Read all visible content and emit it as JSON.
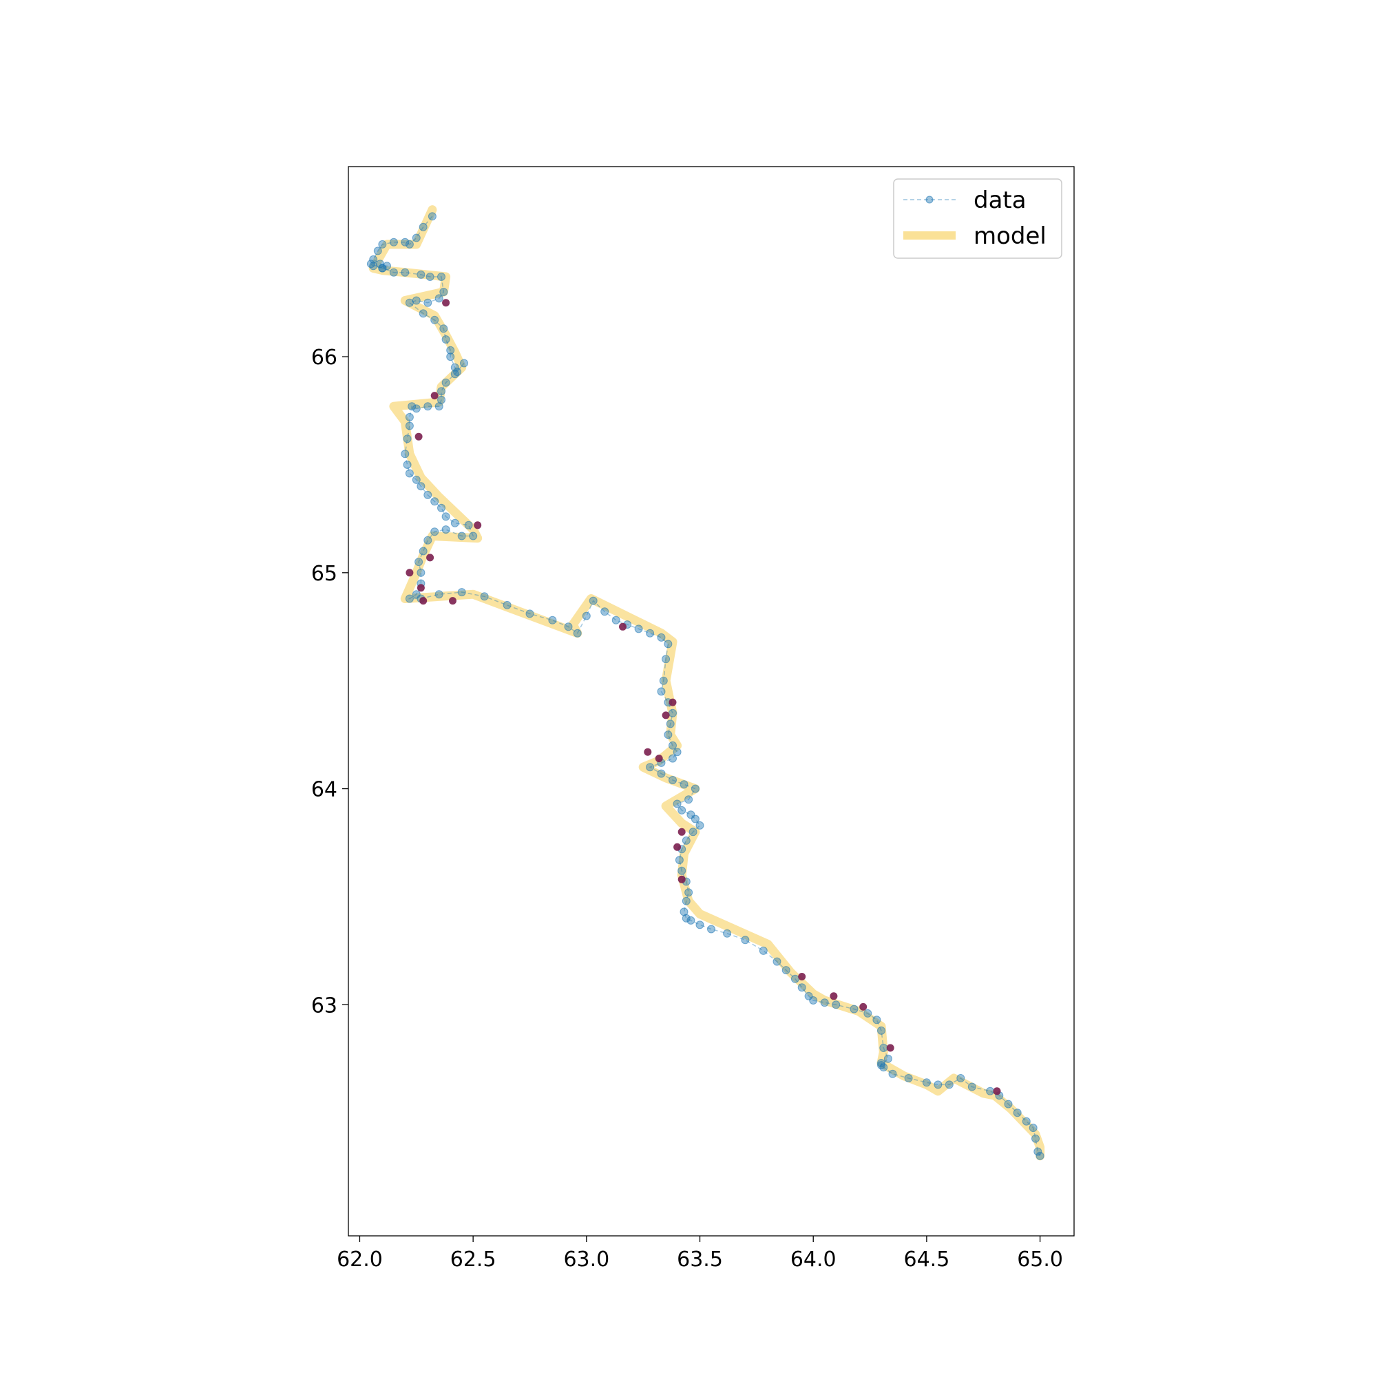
{
  "chart_data": {
    "type": "line",
    "title": "",
    "xlabel": "",
    "ylabel": "",
    "xlim": [
      61.95,
      65.15
    ],
    "ylim": [
      61.93,
      66.88
    ],
    "xticks": [
      "62.0",
      "62.5",
      "63.0",
      "63.5",
      "64.0",
      "64.5",
      "65.0"
    ],
    "yticks": [
      "63",
      "64",
      "65",
      "66"
    ],
    "legend_position": "top-right",
    "grid": false,
    "colors": {
      "data": "#1f77b4",
      "model": "#f5c842",
      "outlier": "#7b1f4f",
      "axes": "#000000"
    },
    "series": [
      {
        "name": "data",
        "style": "dashed line with circle markers",
        "x": [
          62.32,
          62.28,
          62.25,
          62.22,
          62.2,
          62.15,
          62.1,
          62.08,
          62.06,
          62.09,
          62.12,
          62.1,
          62.06,
          62.05,
          62.1,
          62.15,
          62.2,
          62.27,
          62.31,
          62.36,
          62.37,
          62.35,
          62.3,
          62.25,
          62.22,
          62.28,
          62.33,
          62.37,
          62.38,
          62.4,
          62.4,
          62.42,
          62.43,
          62.46,
          62.42,
          62.38,
          62.36,
          62.36,
          62.35,
          62.3,
          62.25,
          62.23,
          62.22,
          62.22,
          62.21,
          62.2,
          62.21,
          62.22,
          62.25,
          62.27,
          62.3,
          62.33,
          62.36,
          62.38,
          62.42,
          62.48,
          62.5,
          62.45,
          62.38,
          62.33,
          62.3,
          62.28,
          62.26,
          62.27,
          62.27,
          62.25,
          62.22,
          62.27,
          62.35,
          62.45,
          62.55,
          62.65,
          62.75,
          62.85,
          62.92,
          62.96,
          63.0,
          63.03,
          63.08,
          63.13,
          63.18,
          63.23,
          63.28,
          63.33,
          63.36,
          63.35,
          63.34,
          63.33,
          63.36,
          63.38,
          63.37,
          63.36,
          63.38,
          63.4,
          63.38,
          63.33,
          63.28,
          63.33,
          63.38,
          63.43,
          63.48,
          63.45,
          63.4,
          63.42,
          63.46,
          63.48,
          63.5,
          63.47,
          63.44,
          63.42,
          63.41,
          63.42,
          63.44,
          63.45,
          63.44,
          63.43,
          63.44,
          63.46,
          63.5,
          63.55,
          63.62,
          63.7,
          63.78,
          63.84,
          63.88,
          63.92,
          63.95,
          63.98,
          64.0,
          64.05,
          64.1,
          64.18,
          64.24,
          64.28,
          64.3,
          64.31,
          64.33,
          64.3,
          64.3,
          64.31,
          64.35,
          64.42,
          64.5,
          64.55,
          64.6,
          64.65,
          64.7,
          64.78,
          64.82,
          64.86,
          64.9,
          64.94,
          64.97,
          64.98,
          64.99,
          65.0
        ],
        "y": [
          66.65,
          66.6,
          66.55,
          66.52,
          66.53,
          66.53,
          66.52,
          66.49,
          66.45,
          66.43,
          66.42,
          66.41,
          66.42,
          66.43,
          66.41,
          66.39,
          66.39,
          66.38,
          66.37,
          66.37,
          66.3,
          66.27,
          66.25,
          66.26,
          66.25,
          66.2,
          66.17,
          66.13,
          66.08,
          66.03,
          66.0,
          65.95,
          65.93,
          65.97,
          65.92,
          65.88,
          65.84,
          65.8,
          65.77,
          65.77,
          65.76,
          65.77,
          65.72,
          65.68,
          65.62,
          65.55,
          65.5,
          65.46,
          65.43,
          65.4,
          65.36,
          65.33,
          65.3,
          65.26,
          65.23,
          65.22,
          65.17,
          65.17,
          65.2,
          65.19,
          65.15,
          65.1,
          65.05,
          65.0,
          64.95,
          64.9,
          64.88,
          64.88,
          64.9,
          64.91,
          64.89,
          64.85,
          64.81,
          64.78,
          64.75,
          64.72,
          64.8,
          64.87,
          64.82,
          64.78,
          64.76,
          64.74,
          64.72,
          64.7,
          64.67,
          64.6,
          64.5,
          64.45,
          64.4,
          64.35,
          64.3,
          64.25,
          64.2,
          64.17,
          64.14,
          64.12,
          64.1,
          64.07,
          64.04,
          64.02,
          64.0,
          63.95,
          63.93,
          63.9,
          63.88,
          63.86,
          63.83,
          63.8,
          63.76,
          63.72,
          63.67,
          63.62,
          63.57,
          63.52,
          63.48,
          63.43,
          63.4,
          63.39,
          63.37,
          63.35,
          63.33,
          63.3,
          63.25,
          63.2,
          63.16,
          63.12,
          63.08,
          63.04,
          63.02,
          63.01,
          63.0,
          62.98,
          62.96,
          62.93,
          62.88,
          62.8,
          62.75,
          62.72,
          62.73,
          62.71,
          62.68,
          62.66,
          62.64,
          62.63,
          62.63,
          62.66,
          62.62,
          62.6,
          62.58,
          62.54,
          62.5,
          62.46,
          62.43,
          62.38,
          62.32,
          62.3
        ]
      },
      {
        "name": "model",
        "style": "thick translucent line",
        "x": [
          62.32,
          62.25,
          62.12,
          62.06,
          62.1,
          62.2,
          62.38,
          62.37,
          62.2,
          62.33,
          62.38,
          62.42,
          62.45,
          62.36,
          62.35,
          62.15,
          62.2,
          62.22,
          62.27,
          62.35,
          62.42,
          62.5,
          62.52,
          62.32,
          62.28,
          62.25,
          62.2,
          62.5,
          62.96,
          62.94,
          63.02,
          63.33,
          63.38,
          63.35,
          63.38,
          63.37,
          63.4,
          63.32,
          63.25,
          63.35,
          63.48,
          63.35,
          63.42,
          63.48,
          63.43,
          63.42,
          63.45,
          63.5,
          63.65,
          63.8,
          63.9,
          64.0,
          64.05,
          64.2,
          64.3,
          64.31,
          64.3,
          64.4,
          64.5,
          64.55,
          64.62,
          64.75,
          64.8,
          64.87,
          64.98,
          65.0,
          65.0
        ],
        "y": [
          66.68,
          66.52,
          66.52,
          66.41,
          66.4,
          66.39,
          66.37,
          66.3,
          66.26,
          66.19,
          66.1,
          66.02,
          65.95,
          65.86,
          65.79,
          65.77,
          65.7,
          65.55,
          65.44,
          65.35,
          65.28,
          65.2,
          65.16,
          65.17,
          65.08,
          65.0,
          64.88,
          64.9,
          64.72,
          64.76,
          64.88,
          64.72,
          64.68,
          64.5,
          64.35,
          64.25,
          64.2,
          64.13,
          64.1,
          64.05,
          64.0,
          63.92,
          63.84,
          63.8,
          63.7,
          63.6,
          63.48,
          63.42,
          63.35,
          63.28,
          63.15,
          63.05,
          63.02,
          62.97,
          62.9,
          62.78,
          62.73,
          62.67,
          62.63,
          62.6,
          62.66,
          62.59,
          62.58,
          62.52,
          62.4,
          62.34,
          62.3
        ]
      },
      {
        "name": "",
        "style": "outlier markers",
        "x": [
          62.38,
          62.33,
          62.26,
          62.52,
          62.31,
          62.22,
          62.27,
          62.28,
          62.41,
          63.16,
          63.38,
          63.35,
          63.27,
          63.32,
          63.42,
          63.4,
          63.42,
          63.95,
          64.09,
          64.22,
          64.34,
          64.81
        ],
        "y": [
          66.25,
          65.82,
          65.63,
          65.22,
          65.07,
          65.0,
          64.93,
          64.87,
          64.87,
          64.75,
          64.4,
          64.34,
          64.17,
          64.14,
          63.8,
          63.73,
          63.58,
          63.13,
          63.04,
          62.99,
          62.8,
          62.6
        ]
      }
    ]
  }
}
